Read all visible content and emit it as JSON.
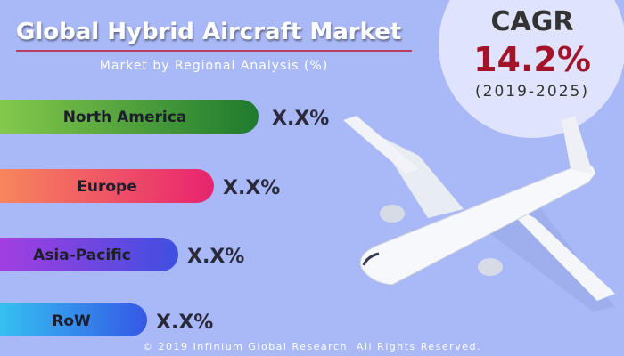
{
  "header": {
    "title": "Global Hybrid Aircraft Market",
    "subtitle": "Market by Regional Analysis (%)"
  },
  "cagr": {
    "label": "CAGR",
    "value": "14.2%",
    "period": "(2019-2025)"
  },
  "regions": [
    {
      "name": "North America",
      "value": "X.X%"
    },
    {
      "name": "Europe",
      "value": "X.X%"
    },
    {
      "name": "Asia-Pacific",
      "value": "X.X%"
    },
    {
      "name": "RoW",
      "value": "X.X%"
    }
  ],
  "footer": "© 2019 Infinium Global Research. All Rights Reserved."
}
